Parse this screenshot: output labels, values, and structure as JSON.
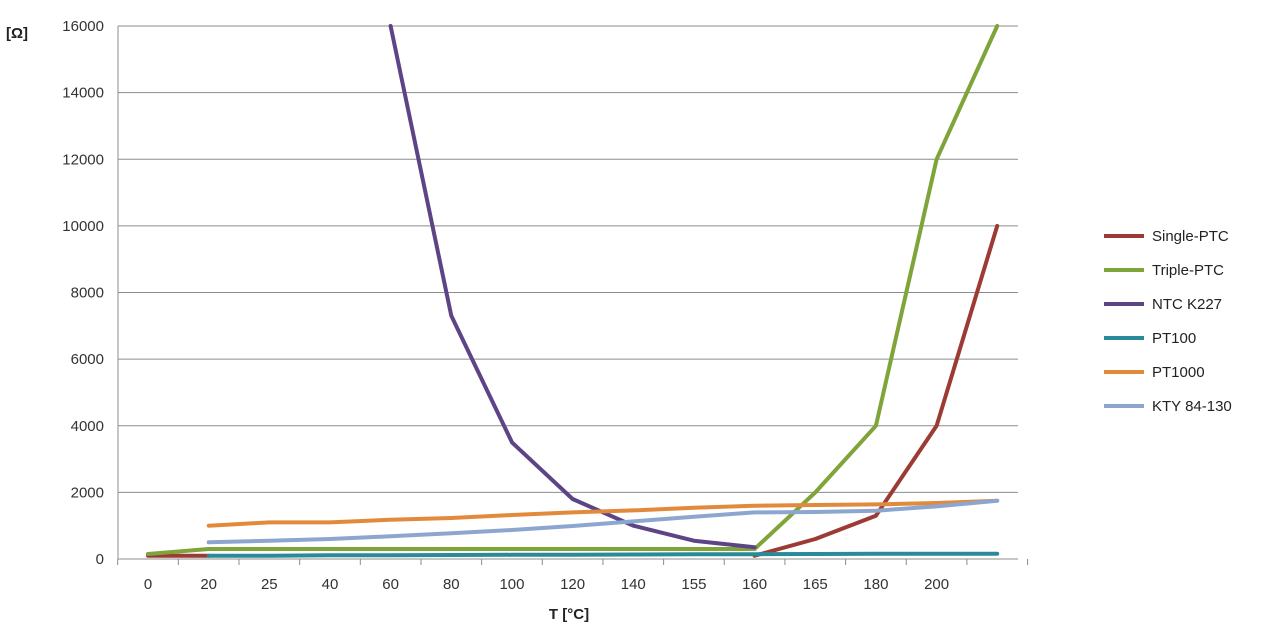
{
  "chart_data": {
    "type": "line",
    "title": "",
    "xlabel": "T  [°C]",
    "ylabel": "[Ω]",
    "categories": [
      "0",
      "20",
      "25",
      "40",
      "60",
      "80",
      "100",
      "120",
      "140",
      "155",
      "160",
      "165",
      "180",
      "200",
      ""
    ],
    "ylim": [
      0,
      16000
    ],
    "yticks": [
      0,
      2000,
      4000,
      6000,
      8000,
      10000,
      12000,
      14000,
      16000
    ],
    "grid": true,
    "legend_position": "right",
    "series": [
      {
        "name": "Single-PTC",
        "color": "#9b3b34",
        "values": [
          100,
          100,
          null,
          null,
          null,
          null,
          null,
          null,
          null,
          null,
          100,
          600,
          1300,
          4000,
          10000
        ]
      },
      {
        "name": "Triple-PTC",
        "color": "#7ea43a",
        "values": [
          150,
          300,
          300,
          300,
          300,
          300,
          300,
          300,
          300,
          300,
          300,
          2000,
          4000,
          12000,
          16000
        ]
      },
      {
        "name": "NTC K227",
        "color": "#5c4486",
        "values": [
          null,
          null,
          null,
          null,
          16000,
          7300,
          3500,
          1800,
          1000,
          550,
          350,
          null,
          null,
          null,
          null
        ]
      },
      {
        "name": "PT100",
        "color": "#2a8a98",
        "values": [
          null,
          100,
          100,
          110,
          115,
          120,
          125,
          130,
          135,
          140,
          145,
          150,
          155,
          160,
          160
        ]
      },
      {
        "name": "PT1000",
        "color": "#e28a3c",
        "values": [
          null,
          1000,
          1100,
          1100,
          1180,
          1230,
          1320,
          1400,
          1460,
          1540,
          1600,
          1620,
          1640,
          1680,
          1750
        ]
      },
      {
        "name": "KTY 84-130",
        "color": "#8ca6cf",
        "values": [
          null,
          500,
          550,
          600,
          680,
          770,
          870,
          990,
          1130,
          1270,
          1400,
          1410,
          1450,
          1580,
          1750
        ]
      }
    ]
  }
}
